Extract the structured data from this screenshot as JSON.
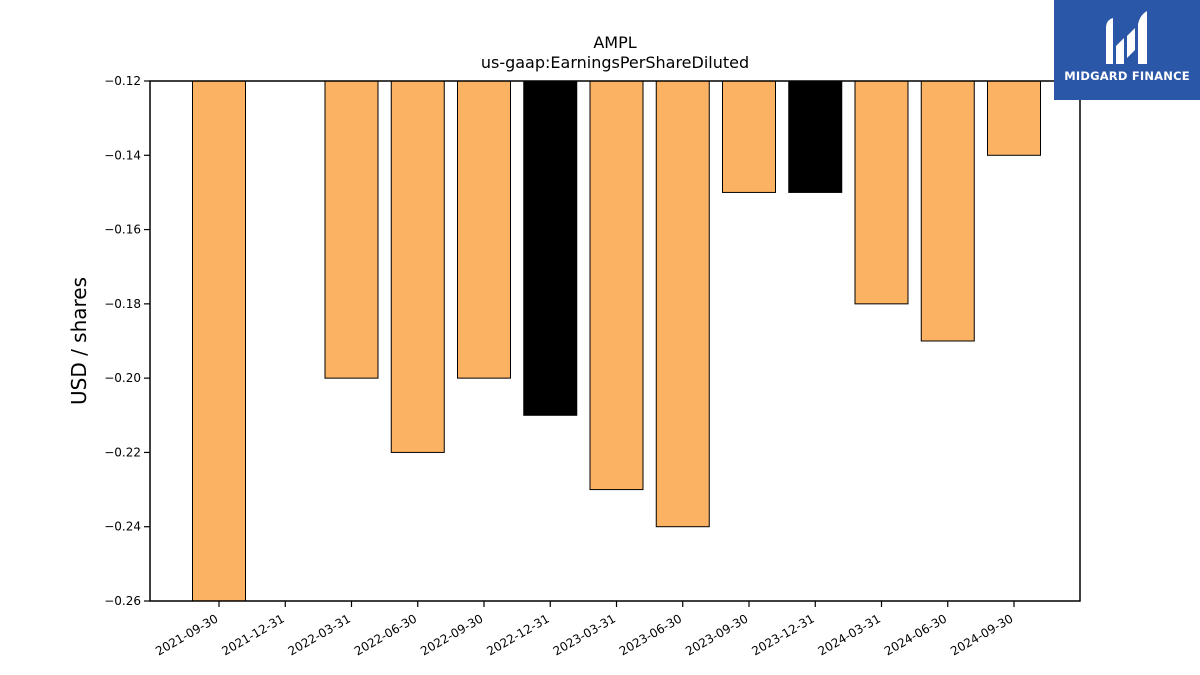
{
  "chart_data": {
    "type": "bar",
    "title": "AMPL",
    "subtitle": "us-gaap:EarningsPerShareDiluted",
    "xlabel": "",
    "ylabel": "USD / shares",
    "ylim": [
      -0.26,
      -0.12
    ],
    "yticks": [
      -0.12,
      -0.14,
      -0.16,
      -0.18,
      -0.2,
      -0.22,
      -0.24,
      -0.26
    ],
    "ytick_labels": [
      "−0.12",
      "−0.14",
      "−0.16",
      "−0.18",
      "−0.20",
      "−0.22",
      "−0.24",
      "−0.26"
    ],
    "categories": [
      "2021-09-30",
      "2021-12-31",
      "2022-03-31",
      "2022-06-30",
      "2022-09-30",
      "2022-12-31",
      "2023-03-31",
      "2023-06-30",
      "2023-09-30",
      "2023-12-31",
      "2024-03-31",
      "2024-06-30",
      "2024-09-30"
    ],
    "values": [
      -0.26,
      null,
      -0.2,
      -0.22,
      -0.2,
      -0.21,
      -0.23,
      -0.24,
      -0.15,
      -0.15,
      -0.18,
      -0.19,
      -0.14
    ],
    "bar_colors": [
      "#fbb262",
      null,
      "#fbb262",
      "#fbb262",
      "#fbb262",
      "#000000",
      "#fbb262",
      "#fbb262",
      "#fbb262",
      "#000000",
      "#fbb262",
      "#fbb262",
      "#fbb262"
    ],
    "grid": false,
    "legend": "none"
  },
  "logo": {
    "text": "MIDGARD FINANCE",
    "background": "#2b57a8"
  }
}
